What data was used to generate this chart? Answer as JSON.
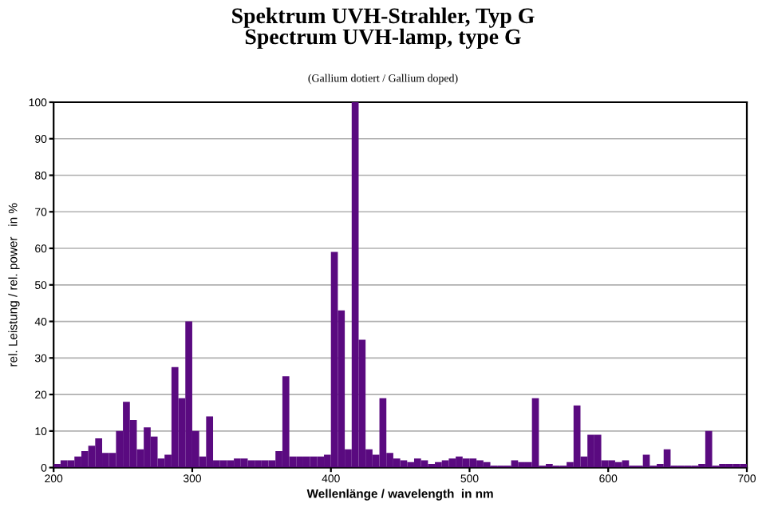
{
  "chart_data": {
    "type": "histogram",
    "title": "Spektrum UVH-Strahler, Typ G\nSpectrum UVH-lamp, type G",
    "subtitle": "(Gallium dotiert / Gallium doped)",
    "xlabel": "Wellenlänge / wavelength  in nm",
    "ylabel": "rel. Leistung / rel. power   in %",
    "bins": [
      200,
      205,
      210,
      215,
      220,
      225,
      230,
      235,
      240,
      245,
      250,
      255,
      260,
      265,
      270,
      275,
      280,
      285,
      290,
      295,
      300,
      305,
      310,
      315,
      320,
      325,
      330,
      335,
      340,
      345,
      350,
      355,
      360,
      365,
      370,
      375,
      380,
      385,
      390,
      395,
      400,
      405,
      410,
      415,
      420,
      425,
      430,
      435,
      440,
      445,
      450,
      455,
      460,
      465,
      470,
      475,
      480,
      485,
      490,
      495,
      500,
      505,
      510,
      515,
      520,
      525,
      530,
      535,
      540,
      545,
      550,
      555,
      560,
      565,
      570,
      575,
      580,
      585,
      590,
      595,
      600,
      605,
      610,
      615,
      620,
      625,
      630,
      635,
      640,
      645,
      650,
      655,
      660,
      665,
      670,
      675,
      680,
      685,
      690,
      695,
      700
    ],
    "values": [
      1,
      2,
      2,
      3,
      4.5,
      6,
      8,
      4,
      4,
      10,
      18,
      13,
      5,
      11,
      8.5,
      2.5,
      3.5,
      27.5,
      19,
      40,
      10,
      3,
      14,
      2,
      2,
      2,
      2.5,
      2.5,
      2,
      2,
      2,
      2,
      4.5,
      25,
      3,
      3,
      3,
      3,
      3,
      3.5,
      59,
      43,
      5,
      100,
      35,
      5,
      3.5,
      19,
      4,
      2.5,
      2,
      1.5,
      2.5,
      2,
      1,
      1.5,
      2,
      2.5,
      3,
      2.5,
      2.5,
      2,
      1.5,
      0.5,
      0.5,
      0.5,
      2,
      1.5,
      1.5,
      19,
      0.5,
      1,
      0.5,
      0.5,
      1.5,
      17,
      3,
      9,
      9,
      2,
      2,
      1.5,
      2,
      0.5,
      0.5,
      3.5,
      0.5,
      1,
      5,
      0.5,
      0.5,
      0.5,
      0.5,
      1,
      10,
      0.5,
      1,
      1,
      1,
      1
    ],
    "color": "#5a0a80",
    "xlim": [
      200,
      700
    ],
    "xticks": [
      200,
      300,
      400,
      500,
      600,
      700
    ],
    "ylim": [
      0,
      100
    ],
    "yticks": [
      0,
      10,
      20,
      30,
      40,
      50,
      60,
      70,
      80,
      90,
      100
    ],
    "grid": "y",
    "legend": false
  }
}
